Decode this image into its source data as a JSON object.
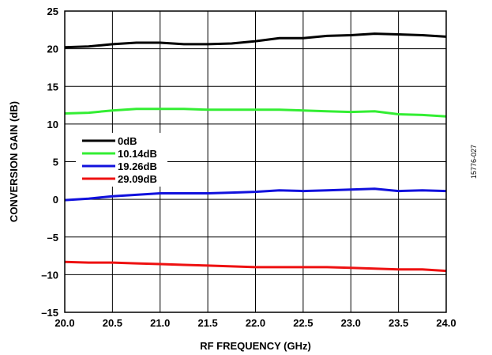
{
  "chart_data": {
    "type": "line",
    "xlabel": "RF FREQUENCY (GHz)",
    "ylabel": "CONVERSION GAIN (dB)",
    "xlim": [
      20.0,
      24.0
    ],
    "ylim": [
      -15,
      25
    ],
    "x_ticks": [
      "20.0",
      "20.5",
      "21.0",
      "21.5",
      "22.0",
      "22.5",
      "23.0",
      "23.5",
      "24.0"
    ],
    "y_ticks": [
      "–15",
      "–10",
      "–5",
      "0",
      "5",
      "10",
      "15",
      "20",
      "25"
    ],
    "grid": true,
    "legend_position": "left-middle",
    "x": [
      20.0,
      20.25,
      20.5,
      20.75,
      21.0,
      21.25,
      21.5,
      21.75,
      22.0,
      22.25,
      22.5,
      22.75,
      23.0,
      23.25,
      23.5,
      23.75,
      24.0
    ],
    "series": [
      {
        "name": "0dB",
        "color": "#000000",
        "values": [
          20.2,
          20.3,
          20.6,
          20.8,
          20.8,
          20.6,
          20.6,
          20.7,
          21.0,
          21.4,
          21.4,
          21.7,
          21.8,
          22.0,
          21.9,
          21.8,
          21.6
        ]
      },
      {
        "name": "10.14dB",
        "color": "#33ee33",
        "values": [
          11.4,
          11.5,
          11.8,
          12.0,
          12.0,
          12.0,
          11.9,
          11.9,
          11.9,
          11.9,
          11.8,
          11.7,
          11.6,
          11.7,
          11.3,
          11.2,
          11.0
        ]
      },
      {
        "name": "19.26dB",
        "color": "#1111dd",
        "values": [
          -0.1,
          0.1,
          0.4,
          0.6,
          0.8,
          0.8,
          0.8,
          0.9,
          1.0,
          1.2,
          1.1,
          1.2,
          1.3,
          1.4,
          1.1,
          1.2,
          1.1
        ]
      },
      {
        "name": "29.09dB",
        "color": "#ee1111",
        "values": [
          -8.3,
          -8.4,
          -8.4,
          -8.5,
          -8.6,
          -8.7,
          -8.8,
          -8.9,
          -9.0,
          -9.0,
          -9.0,
          -9.0,
          -9.1,
          -9.2,
          -9.3,
          -9.3,
          -9.5
        ]
      }
    ]
  },
  "figure_id": "15776-027"
}
